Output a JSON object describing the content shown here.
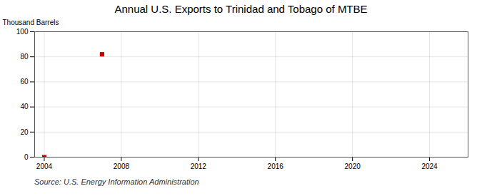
{
  "chart_data": {
    "type": "scatter",
    "title": "Annual U.S. Exports to Trinidad and Tobago of MTBE",
    "ylabel": "Thousand Barrels",
    "annotations": [
      "Source: U.S. Energy Information Administration"
    ],
    "x": [
      2004,
      2007
    ],
    "values": [
      0,
      82
    ],
    "color": "#cc0000",
    "marker": "square",
    "xlim": [
      2003.5,
      2026
    ],
    "ylim": [
      0,
      100
    ],
    "xticks": [
      2004,
      2008,
      2012,
      2016,
      2020,
      2024
    ],
    "yticks": [
      0,
      20,
      40,
      60,
      80,
      100
    ],
    "grid": true
  }
}
